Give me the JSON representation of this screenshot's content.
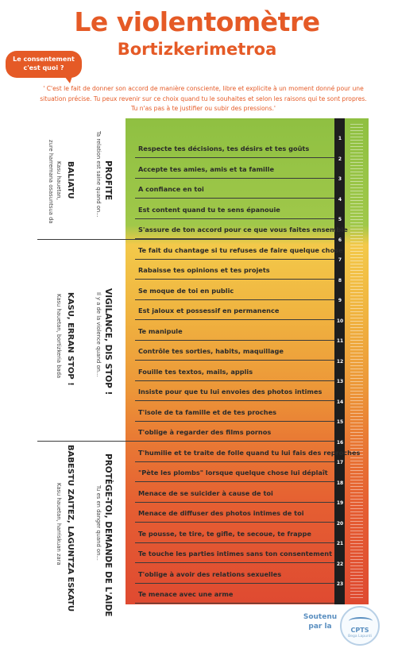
{
  "header": {
    "title": "Le violentomètre",
    "subtitle": "Bortizkerimetroa",
    "bubble": "Le consentement c'est quoi ?",
    "quote_line1": "' C'est le fait de donner son accord de manière consciente, libre et explicite à un moment donné pour une",
    "quote_line2": "situation précise. Tu peux revenir sur ce choix quand tu le souhaites et selon les raisons qui te sont propres.",
    "quote_line3": "Tu n'as pas à te justifier ou subir des pressions.'"
  },
  "sections": [
    {
      "heading": "PROFITE",
      "sub": "Ta relation est saine quand on...",
      "basque_heading": "BALIATU",
      "basque_sub1": "Kasu hauetan,",
      "basque_sub2": "zure harremana osasuntsua da"
    },
    {
      "heading": "VIGILANCE, DIS STOP !",
      "sub": "Il y a de la violence quand on...",
      "basque_heading": "KASU, ERRAN STOP !",
      "basque_sub1": "Kasu hauetan, bortizkeria bada"
    },
    {
      "heading": "PROTÈGE-TOI, DEMANDE DE L'AIDE",
      "sub": "Tu es en danger quand on...",
      "basque_heading": "BABESTU ZAITEZ, LAGUNTZA ESKATU",
      "basque_sub1": "Kasu hauetan, harriskuan zara"
    }
  ],
  "items": [
    "Respecte tes décisions, tes désirs et tes goûts",
    "Accepte tes amies, amis et ta famille",
    "A confiance en toi",
    "Est content quand tu te sens épanouie",
    "S'assure de ton accord pour ce que vous faites ensemble",
    "Te fait du chantage si tu refuses de faire quelque chose",
    "Rabaisse tes opinions et tes projets",
    "Se moque de toi en public",
    "Est jaloux et possessif en permanence",
    "Te manipule",
    "Contrôle tes sorties, habits, maquillage",
    "Fouille tes textos, mails, applis",
    "Insiste pour que tu lui envoies des photos intimes",
    "T'isole de ta famille et de tes proches",
    "T'oblige à regarder des films pornos",
    "T'humilie et te traite de folle quand tu lui fais des reproches",
    "\"Pète les plombs\" lorsque quelque chose lui déplaît",
    "Menace de se suicider à cause de toi",
    "Menace de diffuser des photos intimes de toi",
    "Te pousse, te tire, te gifle, te secoue, te frappe",
    "Te touche les parties intimes sans ton consentement",
    "T'oblige à avoir des relations sexuelles",
    "Te menace avec une arme"
  ],
  "scale": [
    "1",
    "2",
    "3",
    "4",
    "5",
    "6",
    "7",
    "8",
    "9",
    "10",
    "11",
    "12",
    "13",
    "14",
    "15",
    "16",
    "17",
    "18",
    "19",
    "20",
    "21",
    "22",
    "23"
  ],
  "footer": {
    "support_line1": "Soutenu",
    "support_line2": "par la",
    "logo_name": "CPTS",
    "logo_sub": "Bega Lapurdi"
  },
  "colors": {
    "accent": "#e55a26",
    "green": "#8fc042",
    "yellow": "#f3c94a",
    "orange": "#ec9638",
    "red": "#df4a31"
  }
}
